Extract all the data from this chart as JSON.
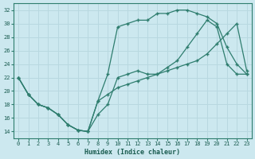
{
  "xlabel": "Humidex (Indice chaleur)",
  "bg_color": "#cce8ef",
  "line_color": "#2e7d6e",
  "grid_color": "#b8d8e0",
  "xlim": [
    -0.5,
    23.5
  ],
  "ylim": [
    13,
    33
  ],
  "xticks": [
    0,
    1,
    2,
    3,
    4,
    5,
    6,
    7,
    8,
    9,
    10,
    11,
    12,
    13,
    14,
    15,
    16,
    17,
    18,
    19,
    20,
    21,
    22,
    23
  ],
  "yticks": [
    14,
    16,
    18,
    20,
    22,
    24,
    26,
    28,
    30,
    32
  ],
  "curve1_x": [
    0,
    1,
    2,
    3,
    4,
    5,
    6,
    7,
    8,
    9,
    10,
    11,
    12,
    13,
    14,
    15,
    16,
    17,
    18,
    19,
    20,
    21,
    22,
    23
  ],
  "curve1_y": [
    22.0,
    19.5,
    18.0,
    17.5,
    16.5,
    15.0,
    14.2,
    14.0,
    16.5,
    18.0,
    22.0,
    22.5,
    23.0,
    22.5,
    22.5,
    23.0,
    23.5,
    24.0,
    24.5,
    25.5,
    27.0,
    28.5,
    30.0,
    23.0
  ],
  "curve2_x": [
    0,
    1,
    2,
    3,
    4,
    5,
    6,
    7,
    8,
    9,
    10,
    11,
    12,
    13,
    14,
    15,
    16,
    17,
    18,
    19,
    20,
    21,
    22,
    23
  ],
  "curve2_y": [
    22.0,
    19.5,
    18.0,
    17.5,
    16.5,
    15.0,
    14.2,
    14.0,
    18.5,
    22.5,
    29.5,
    30.0,
    30.5,
    30.5,
    31.5,
    31.5,
    32.0,
    32.0,
    31.5,
    31.0,
    30.0,
    26.5,
    24.0,
    22.5
  ],
  "curve3_x": [
    0,
    1,
    2,
    3,
    4,
    5,
    6,
    7,
    8,
    9,
    10,
    11,
    12,
    13,
    14,
    15,
    16,
    17,
    18,
    19,
    20,
    21,
    22,
    23
  ],
  "curve3_y": [
    22.0,
    19.5,
    18.0,
    17.5,
    16.5,
    15.0,
    14.2,
    14.0,
    18.5,
    19.5,
    20.5,
    21.0,
    21.5,
    22.0,
    22.5,
    23.5,
    24.5,
    26.5,
    28.5,
    30.5,
    29.5,
    24.0,
    22.5,
    22.5
  ]
}
